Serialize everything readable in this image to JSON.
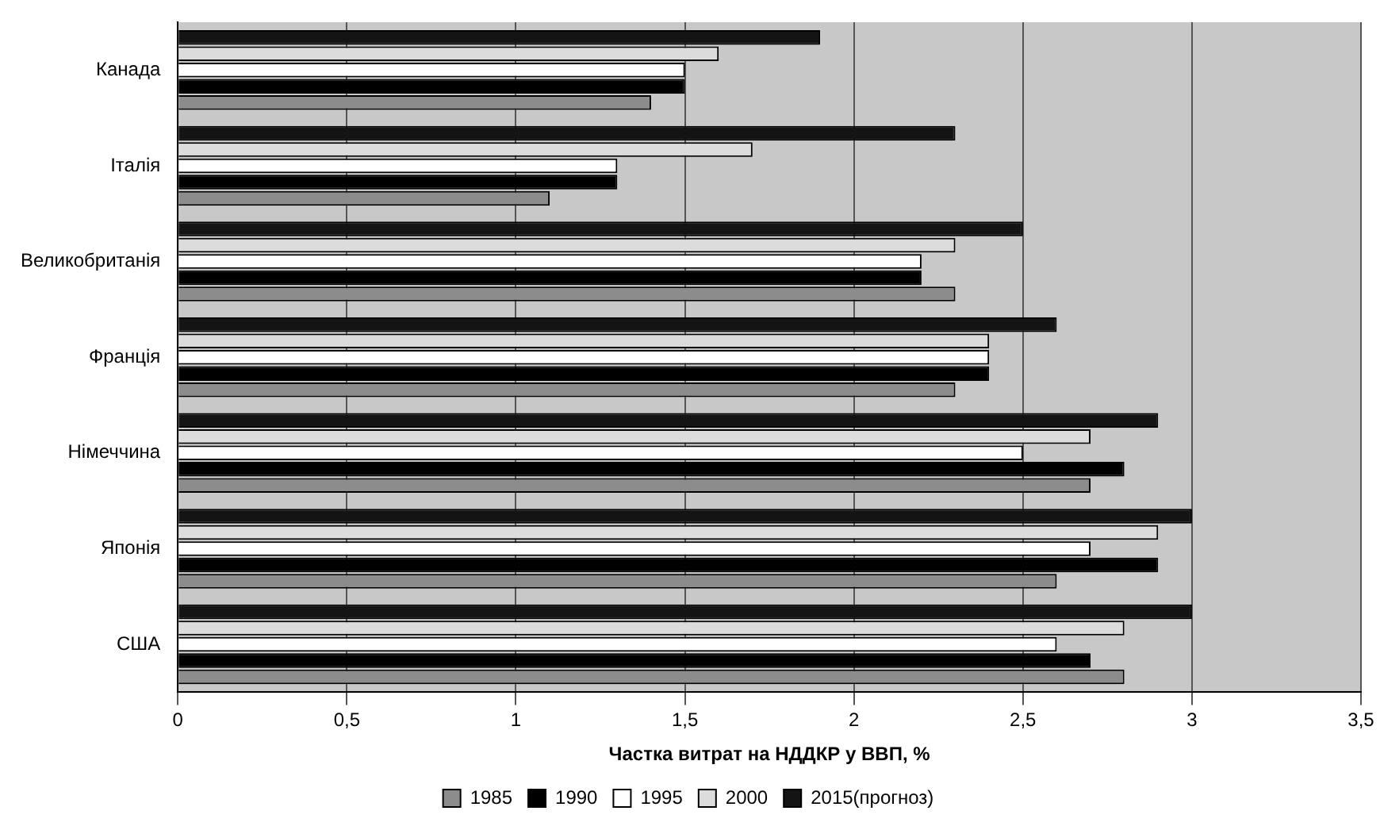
{
  "chart_data": {
    "type": "bar",
    "orientation": "horizontal",
    "xlabel": "Частка витрат на НДДКР у ВВП, %",
    "categories": [
      "Канада",
      "Італія",
      "Великобританія",
      "Франція",
      "Німеччина",
      "Японія",
      "США"
    ],
    "series": [
      {
        "name": "2015(прогноз)",
        "color": "#141414",
        "values": [
          1.9,
          2.3,
          2.5,
          2.6,
          2.9,
          3.0,
          3.0
        ]
      },
      {
        "name": "2000",
        "color": "#dcdcdc",
        "values": [
          1.6,
          1.7,
          2.3,
          2.4,
          2.7,
          2.9,
          2.8
        ]
      },
      {
        "name": "1995",
        "color": "#ffffff",
        "values": [
          1.5,
          1.3,
          2.2,
          2.4,
          2.5,
          2.7,
          2.6
        ]
      },
      {
        "name": "1990",
        "color": "#000000",
        "values": [
          1.5,
          1.3,
          2.2,
          2.4,
          2.8,
          2.9,
          2.7
        ]
      },
      {
        "name": "1985",
        "color": "#8c8c8c",
        "values": [
          1.4,
          1.1,
          2.3,
          2.3,
          2.7,
          2.6,
          2.8
        ]
      }
    ],
    "xlim": [
      0,
      3.5
    ],
    "xticks": [
      {
        "value": 0,
        "label": "0"
      },
      {
        "value": 0.5,
        "label": "0,5"
      },
      {
        "value": 1,
        "label": "1"
      },
      {
        "value": 1.5,
        "label": "1,5"
      },
      {
        "value": 2,
        "label": "2"
      },
      {
        "value": 2.5,
        "label": "2,5"
      },
      {
        "value": 3,
        "label": "3"
      },
      {
        "value": 3.5,
        "label": "3,5"
      }
    ],
    "grid": "x",
    "legend": "bottom"
  }
}
